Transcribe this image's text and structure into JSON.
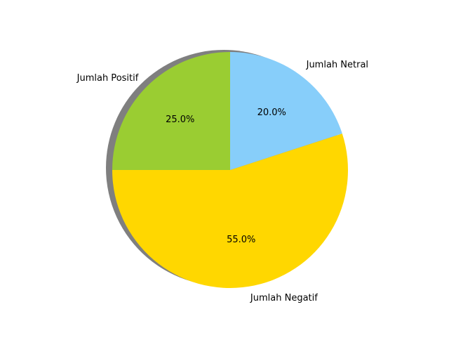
{
  "chart_data": {
    "type": "pie",
    "title": "",
    "shadow": true,
    "slices": [
      {
        "label": "Jumlah Positif",
        "value": 25.0,
        "pct_label": "25.0%",
        "color": "#9ACD32"
      },
      {
        "label": "Jumlah Negatif",
        "value": 55.0,
        "pct_label": "55.0%",
        "color": "#FFD700"
      },
      {
        "label": "Jumlah Netral",
        "value": 20.0,
        "pct_label": "20.0%",
        "color": "#87CEFA"
      }
    ]
  }
}
